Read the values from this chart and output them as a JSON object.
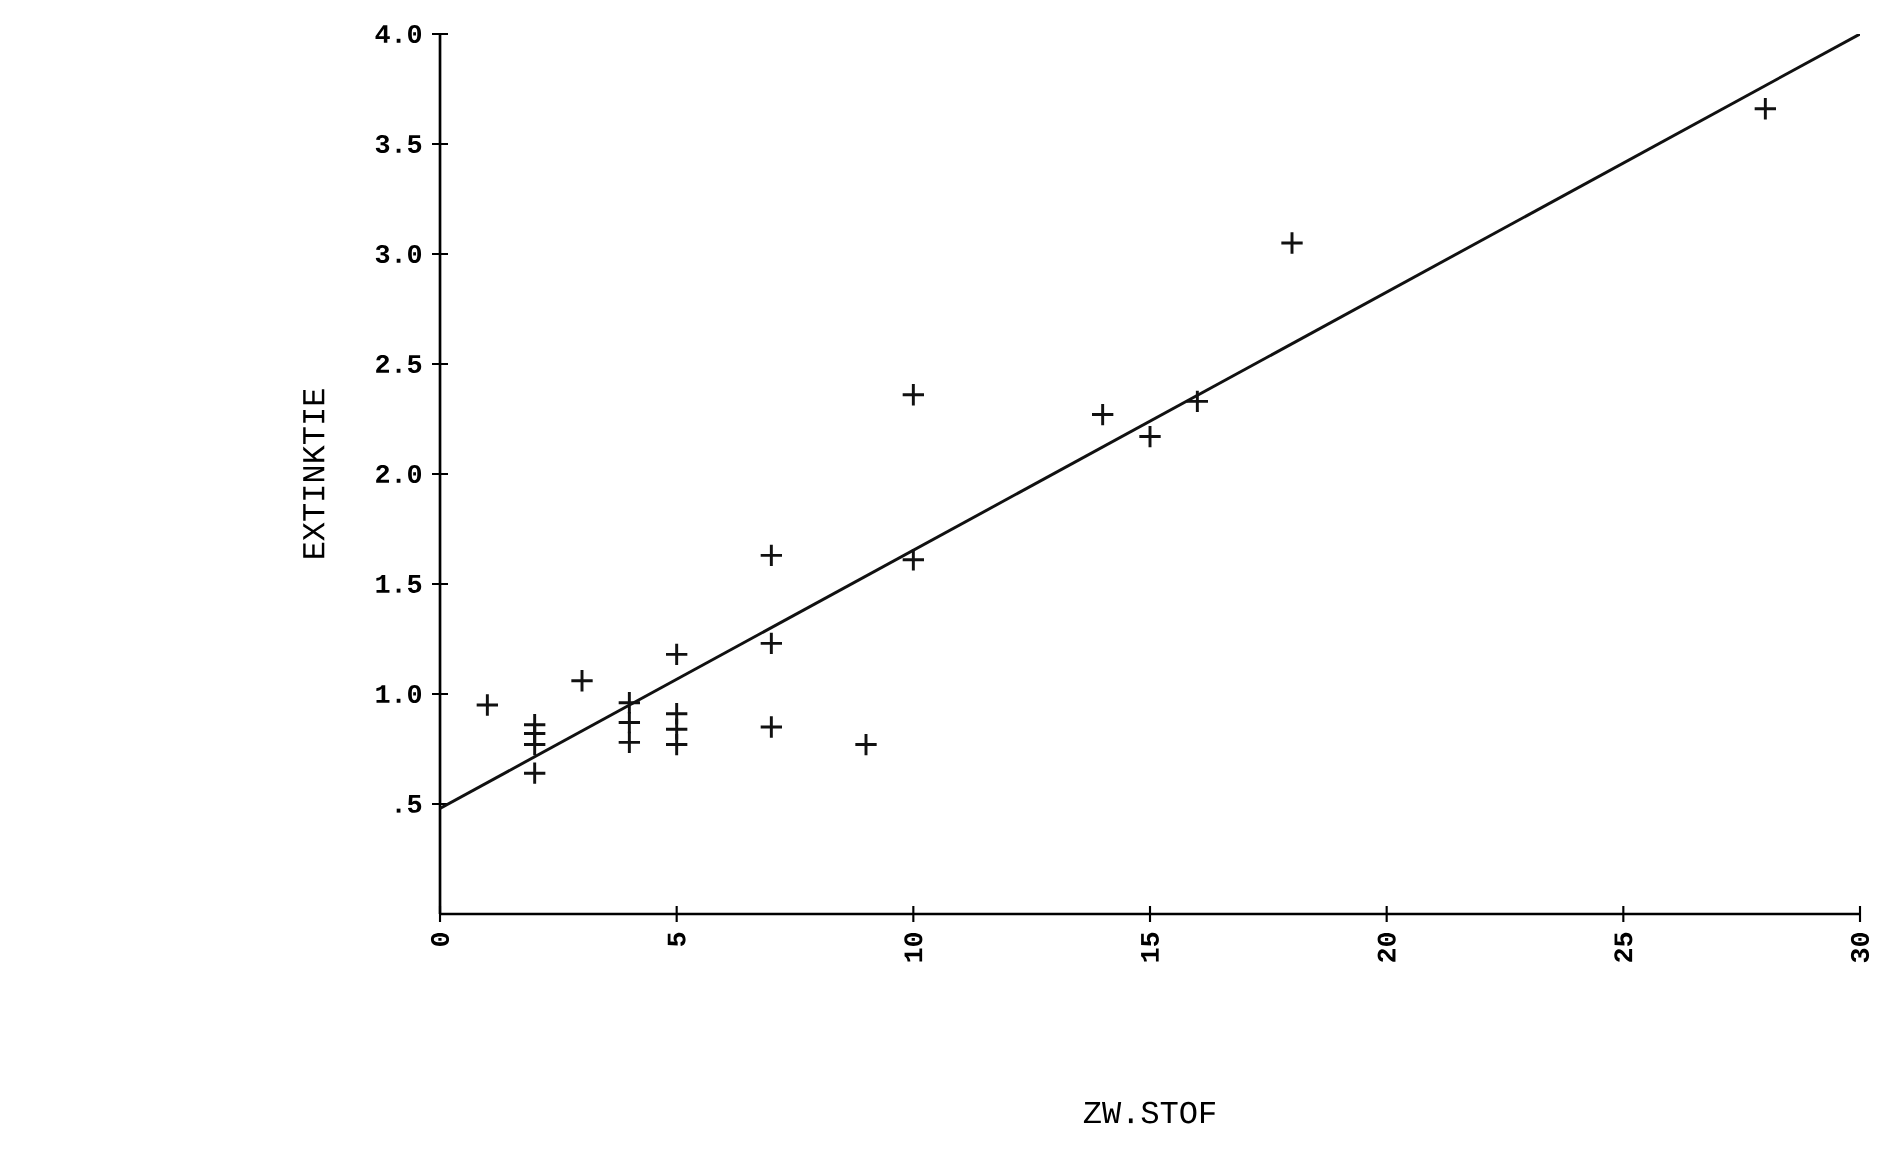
{
  "chart_data": {
    "type": "scatter",
    "xlabel": "ZW.STOF",
    "ylabel": "EXTINKTIE",
    "xlim": [
      0,
      30
    ],
    "ylim": [
      0,
      4
    ],
    "xticks": [
      0,
      5,
      10,
      15,
      20,
      25,
      30
    ],
    "yticks": [
      {
        "value": 0.5,
        "label": ".5"
      },
      {
        "value": 1.0,
        "label": "1.0"
      },
      {
        "value": 1.5,
        "label": "1.5"
      },
      {
        "value": 2.0,
        "label": "2.0"
      },
      {
        "value": 2.5,
        "label": "2.5"
      },
      {
        "value": 3.0,
        "label": "3.0"
      },
      {
        "value": 3.5,
        "label": "3.5"
      },
      {
        "value": 4.0,
        "label": "4.0"
      }
    ],
    "grid": false,
    "marker": "cross",
    "series": [
      {
        "color": "#111111",
        "x": [
          1,
          2,
          2,
          2,
          2,
          3,
          4,
          4,
          4,
          5,
          5,
          5,
          5,
          7,
          7,
          9,
          7,
          10,
          10,
          14,
          15,
          16,
          18,
          28
        ],
        "values": [
          0.95,
          0.86,
          0.82,
          0.77,
          0.64,
          1.06,
          0.96,
          0.87,
          0.78,
          1.18,
          0.91,
          0.84,
          0.77,
          1.23,
          0.85,
          0.77,
          1.63,
          1.61,
          2.36,
          2.27,
          2.17,
          2.33,
          3.05,
          3.66
        ]
      },
      {
        "type": "line",
        "marker": "none",
        "color": "#111111",
        "x": [
          0,
          30
        ],
        "values": [
          0.48,
          4.0
        ]
      }
    ]
  }
}
